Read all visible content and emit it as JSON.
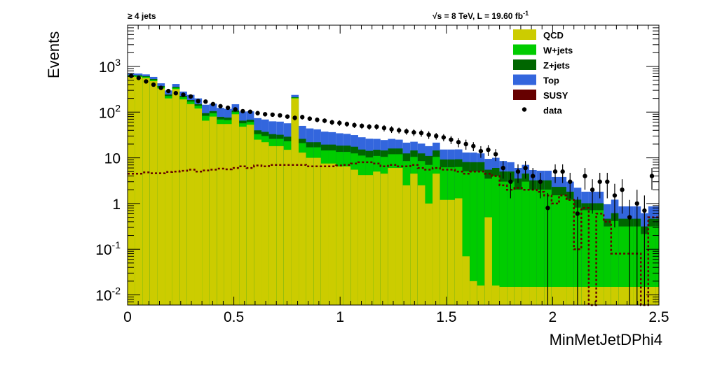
{
  "chart_data": {
    "type": "histogram-stacked",
    "title_left": "≥ 4 jets",
    "title_right_sqrt": "√",
    "title_right_main": "s = 8 TeV, L = 19.60 fb",
    "title_right_sup": "-1",
    "xlabel": "MinMetJetDPhi4",
    "ylabel": "Events",
    "xlim": [
      0,
      2.5
    ],
    "ylim": [
      0.006,
      8000
    ],
    "yscale": "log",
    "x_ticks": [
      "0",
      "0.5",
      "1",
      "1.5",
      "2",
      "2.5"
    ],
    "y_ticks": [
      {
        "base": "10",
        "exp": "-2",
        "value": 0.01
      },
      {
        "base": "10",
        "exp": "-1",
        "value": 0.1
      },
      {
        "base": "1",
        "exp": "",
        "value": 1
      },
      {
        "base": "10",
        "exp": "",
        "value": 10
      },
      {
        "base": "10",
        "exp": "2",
        "value": 100
      },
      {
        "base": "10",
        "exp": "3",
        "value": 1000
      }
    ],
    "bin_width": 0.035,
    "legend_position": "top-right",
    "series": [
      {
        "name": "QCD",
        "color": "#cccc00",
        "values": [
          600,
          590,
          560,
          480,
          330,
          200,
          320,
          190,
          150,
          120,
          65,
          80,
          55,
          55,
          90,
          48,
          53,
          25,
          22,
          18,
          18,
          15,
          200,
          13,
          10,
          10,
          7.5,
          7.5,
          6.5,
          6.5,
          5.5,
          4.2,
          4.2,
          5,
          4.5,
          6,
          6,
          2.5,
          4.5,
          2.5,
          1,
          4.5,
          1.2,
          1.2,
          1.3,
          0.07,
          0.02,
          0.016,
          0.5,
          0.016,
          0.015,
          0.015,
          0.015,
          0.015,
          0.015,
          0.015,
          0.015,
          0.015,
          0.015,
          0.015,
          0.015,
          0.015,
          0.015,
          0.015,
          0.015,
          0.015,
          0.015,
          0.015,
          0.015,
          0.015,
          0.015,
          0.015
        ]
      },
      {
        "name": "W+jets",
        "color": "#00cc00",
        "values": [
          30,
          30,
          30,
          30,
          25,
          25,
          22,
          22,
          20,
          18,
          18,
          15,
          14,
          12,
          10,
          9,
          8,
          8,
          8,
          8,
          8,
          8,
          7,
          8,
          7,
          7,
          7,
          7,
          7,
          7,
          7,
          7,
          6,
          6,
          6,
          6,
          6,
          6,
          6,
          6,
          6,
          6,
          5,
          5,
          5,
          5,
          5,
          5,
          3,
          4,
          3,
          3,
          2,
          3,
          2,
          2,
          2,
          1.5,
          1.5,
          1.2,
          0.8,
          0.7,
          0.7,
          0.7,
          0.3,
          0.4,
          0.3,
          0.3,
          0.3,
          0.2,
          0.3,
          0.3
        ]
      },
      {
        "name": "Z+jets",
        "color": "#006600",
        "values": [
          20,
          20,
          20,
          20,
          18,
          18,
          16,
          15,
          14,
          12,
          12,
          10,
          10,
          9,
          9,
          8,
          7,
          7,
          7,
          7,
          6,
          6,
          5,
          5,
          5,
          5,
          5,
          5,
          5,
          5,
          5,
          4,
          4,
          4,
          4,
          4,
          4,
          4,
          4,
          4,
          4,
          4,
          3,
          3,
          3,
          3,
          3,
          3,
          2,
          2,
          2,
          2,
          1.5,
          1.5,
          1.2,
          1.2,
          1.2,
          0.8,
          0.8,
          0.6,
          0.4,
          0.3,
          0.3,
          0.3,
          0.15,
          0.2,
          0.15,
          0.15,
          0.15,
          0.1,
          0.15,
          0.15
        ]
      },
      {
        "name": "Top",
        "color": "#3366dd",
        "values": [
          60,
          60,
          60,
          60,
          55,
          55,
          55,
          55,
          55,
          50,
          50,
          48,
          45,
          42,
          40,
          38,
          36,
          34,
          32,
          30,
          30,
          28,
          26,
          24,
          22,
          20,
          18,
          17,
          16,
          15,
          14,
          13,
          12,
          11,
          10,
          10,
          9,
          9,
          8,
          8,
          7,
          7,
          6,
          6,
          6,
          5,
          5,
          4.5,
          4,
          4,
          3.5,
          3,
          2.5,
          2.5,
          2.2,
          2,
          2,
          1.5,
          1.5,
          1.2,
          1.0,
          0.8,
          0.8,
          0.8,
          0.5,
          0.6,
          0.4,
          0.4,
          0.4,
          0.3,
          0.4,
          0.4
        ]
      },
      {
        "name": "SUSY",
        "color": "#660000",
        "line": true,
        "values": [
          4.5,
          4.5,
          4.8,
          4.6,
          4.6,
          4.9,
          5.0,
          5.2,
          5.5,
          5.0,
          5.3,
          5.5,
          5.8,
          5.6,
          6.0,
          6.5,
          6.0,
          6.8,
          6.5,
          7.0,
          7.0,
          7.0,
          7.0,
          7.0,
          6.5,
          6.5,
          6.5,
          6.5,
          6.8,
          7.0,
          7.5,
          8,
          8,
          7.5,
          6.5,
          7,
          6.5,
          6.5,
          7,
          6,
          5.5,
          6,
          5.5,
          5.5,
          5,
          4.5,
          5,
          5,
          4.5,
          4,
          2.5,
          2.0,
          2.2,
          2.0,
          2.0,
          1.8,
          1.5,
          1.0,
          1.5,
          1.2,
          0.1,
          0.8,
          0.005,
          0.6,
          0.4,
          0.08,
          0.08,
          0.08,
          0.08,
          0.005,
          0.5,
          0.5
        ]
      }
    ],
    "data": {
      "name": "data",
      "x": [
        0.017,
        0.052,
        0.087,
        0.122,
        0.157,
        0.192,
        0.227,
        0.262,
        0.297,
        0.332,
        0.367,
        0.402,
        0.437,
        0.472,
        0.507,
        0.542,
        0.577,
        0.612,
        0.647,
        0.682,
        0.717,
        0.752,
        0.787,
        0.822,
        0.857,
        0.892,
        0.927,
        0.962,
        0.997,
        1.032,
        1.067,
        1.102,
        1.137,
        1.172,
        1.207,
        1.242,
        1.277,
        1.312,
        1.347,
        1.382,
        1.417,
        1.452,
        1.487,
        1.522,
        1.557,
        1.592,
        1.627,
        1.662,
        1.697,
        1.732,
        1.767,
        1.802,
        1.837,
        1.872,
        1.907,
        1.942,
        1.977,
        2.012,
        2.047,
        2.082,
        2.117,
        2.152,
        2.187,
        2.222,
        2.257,
        2.292,
        2.327,
        2.362,
        2.397,
        2.432,
        2.467
      ],
      "y": [
        620,
        560,
        470,
        400,
        340,
        290,
        260,
        240,
        220,
        175,
        170,
        150,
        135,
        125,
        115,
        105,
        102,
        95,
        90,
        88,
        85,
        80,
        75,
        78,
        72,
        68,
        65,
        60,
        58,
        55,
        52,
        50,
        48,
        48,
        45,
        42,
        40,
        38,
        36,
        35,
        32,
        30,
        28,
        25,
        22,
        20,
        18,
        14,
        15,
        12,
        6,
        3,
        5,
        6,
        4,
        3,
        0.8,
        5,
        5,
        3,
        0.6,
        4,
        2,
        3,
        3,
        1.5,
        2,
        0.5,
        1,
        0.7,
        4
      ],
      "err": [
        25,
        24,
        22,
        20,
        18,
        17,
        16,
        15,
        15,
        13,
        13,
        12,
        12,
        11,
        11,
        10,
        10,
        10,
        10,
        9,
        9,
        9,
        9,
        9,
        8,
        8,
        8,
        8,
        8,
        7,
        7,
        7,
        7,
        7,
        7,
        7,
        6,
        6,
        6,
        6,
        6,
        5,
        5,
        5,
        5,
        5,
        4,
        4,
        4,
        3.5,
        2.5,
        1.7,
        2.2,
        2.5,
        2,
        1.7,
        0.9,
        2.2,
        2.2,
        1.7,
        0.8,
        2,
        1.4,
        1.7,
        1.7,
        1.2,
        1.4,
        0.7,
        1,
        0.8,
        2
      ]
    }
  }
}
